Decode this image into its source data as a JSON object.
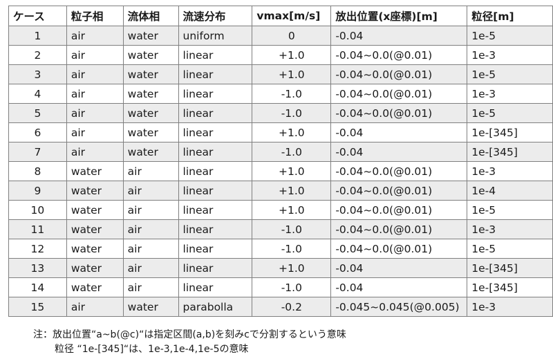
{
  "headers": [
    "ケース",
    "粒子相",
    "流体相",
    "流速分布",
    "vmax[m/s]",
    "放出位置(x座標)[m]",
    "粒径[m]"
  ],
  "rows": [
    [
      "1",
      "air",
      "water",
      "uniform",
      "0",
      "-0.04",
      "1e-5"
    ],
    [
      "2",
      "air",
      "water",
      "linear",
      "+1.0",
      "-0.04~0.0(@0.01)",
      "1e-3"
    ],
    [
      "3",
      "air",
      "water",
      "linear",
      "+1.0",
      "-0.04~0.0(@0.01)",
      "1e-5"
    ],
    [
      "4",
      "air",
      "water",
      "linear",
      "-1.0",
      "-0.04~0.0(@0.01)",
      "1e-3"
    ],
    [
      "5",
      "air",
      "water",
      "linear",
      "-1.0",
      "-0.04~0.0(@0.01)",
      "1e-5"
    ],
    [
      "6",
      "air",
      "water",
      "linear",
      "+1.0",
      "-0.04",
      "1e-[345]"
    ],
    [
      "7",
      "air",
      "water",
      "linear",
      "-1.0",
      "-0.04",
      "1e-[345]"
    ],
    [
      "8",
      "water",
      "air",
      "linear",
      "+1.0",
      "-0.04~0.0(@0.01)",
      "1e-3"
    ],
    [
      "9",
      "water",
      "air",
      "linear",
      "+1.0",
      "-0.04~0.0(@0.01)",
      "1e-4"
    ],
    [
      "10",
      "water",
      "air",
      "linear",
      "+1.0",
      "-0.04~0.0(@0.01)",
      "1e-5"
    ],
    [
      "11",
      "water",
      "air",
      "linear",
      "-1.0",
      "-0.04~0.0(@0.01)",
      "1e-3"
    ],
    [
      "12",
      "water",
      "air",
      "linear",
      "-1.0",
      "-0.04~0.0(@0.01)",
      "1e-5"
    ],
    [
      "13",
      "water",
      "air",
      "linear",
      "+1.0",
      "-0.04",
      "1e-[345]"
    ],
    [
      "14",
      "water",
      "air",
      "linear",
      "-1.0",
      "-0.04",
      "1e-[345]"
    ],
    [
      "15",
      "air",
      "water",
      "parabolla",
      "-0.2",
      "-0.045~0.045(@0.005)",
      "1e-3"
    ]
  ],
  "notes": {
    "line1": "注：放出位置“a~b(@c)“は指定区間(a,b)を刻みcで分割するという意味",
    "line2": "粒径 “1e-[345]“は、1e-3,1e-4,1e-5の意味"
  }
}
